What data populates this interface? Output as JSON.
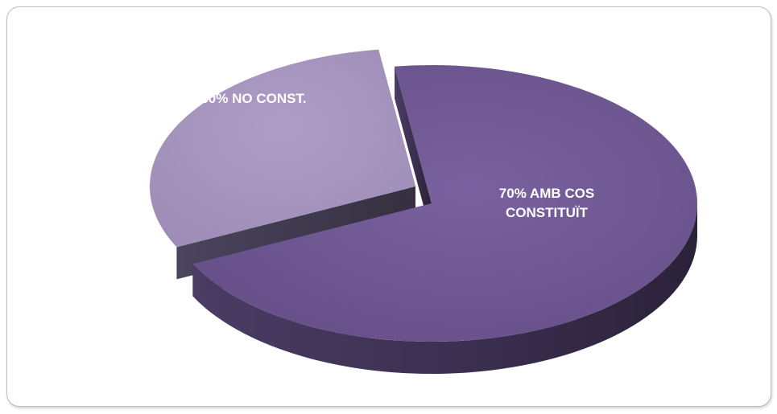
{
  "chart_data": {
    "type": "pie",
    "style": "3d-exploded",
    "slices": [
      {
        "label_lines": [
          "30%  NO CONST."
        ],
        "value": 30,
        "top_color": "#A594BD",
        "side_color": "#3F3A52"
      },
      {
        "label_lines": [
          "70%  AMB COS",
          "CONSTITUÏT"
        ],
        "value": 70,
        "top_color": "#6E5690",
        "side_color": "#3A2E4E"
      }
    ],
    "legend": "none"
  }
}
